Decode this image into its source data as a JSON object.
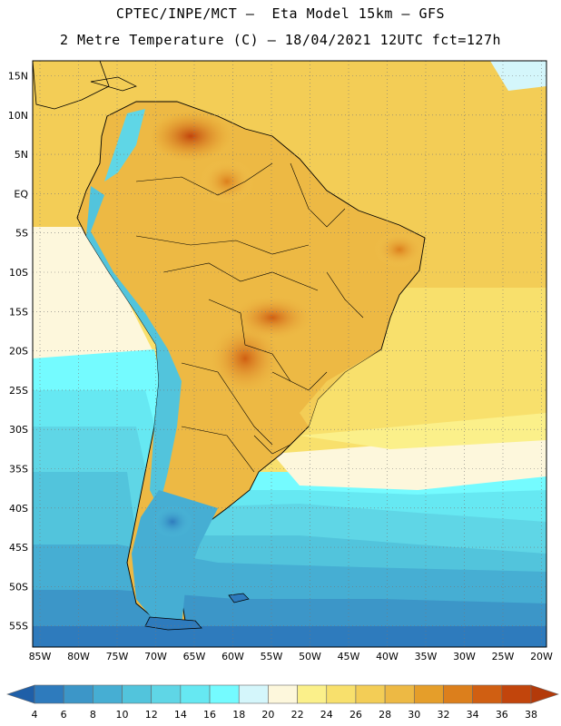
{
  "title_line1": "CPTEC/INPE/MCT –  Eta Model 15km – GFS",
  "title_line2": "2 Metre Temperature (C) – 18/04/2021 12UTC fct=127h",
  "lat_labels": [
    "15N",
    "10N",
    "5N",
    "EQ",
    "5S",
    "10S",
    "15S",
    "20S",
    "25S",
    "30S",
    "35S",
    "40S",
    "45S",
    "50S",
    "55S"
  ],
  "lon_labels": [
    "85W",
    "80W",
    "75W",
    "70W",
    "65W",
    "60W",
    "55W",
    "50W",
    "45W",
    "40W",
    "35W",
    "30W",
    "25W",
    "20W"
  ],
  "colorbar": {
    "labels": [
      "4",
      "6",
      "8",
      "10",
      "12",
      "14",
      "16",
      "18",
      "20",
      "22",
      "24",
      "26",
      "28",
      "30",
      "32",
      "34",
      "36",
      "38"
    ],
    "colors": [
      "#1f5fa8",
      "#2e7bbd",
      "#3c96c8",
      "#46aed3",
      "#52c4dc",
      "#5fd6e6",
      "#66e8f2",
      "#74fbff",
      "#d4f6fb",
      "#fdf7dc",
      "#fbf08a",
      "#f8e06c",
      "#f3cd56",
      "#edb944",
      "#e59e2a",
      "#dc7f1c",
      "#d05f12",
      "#c2450c",
      "#b33a0a"
    ]
  }
}
